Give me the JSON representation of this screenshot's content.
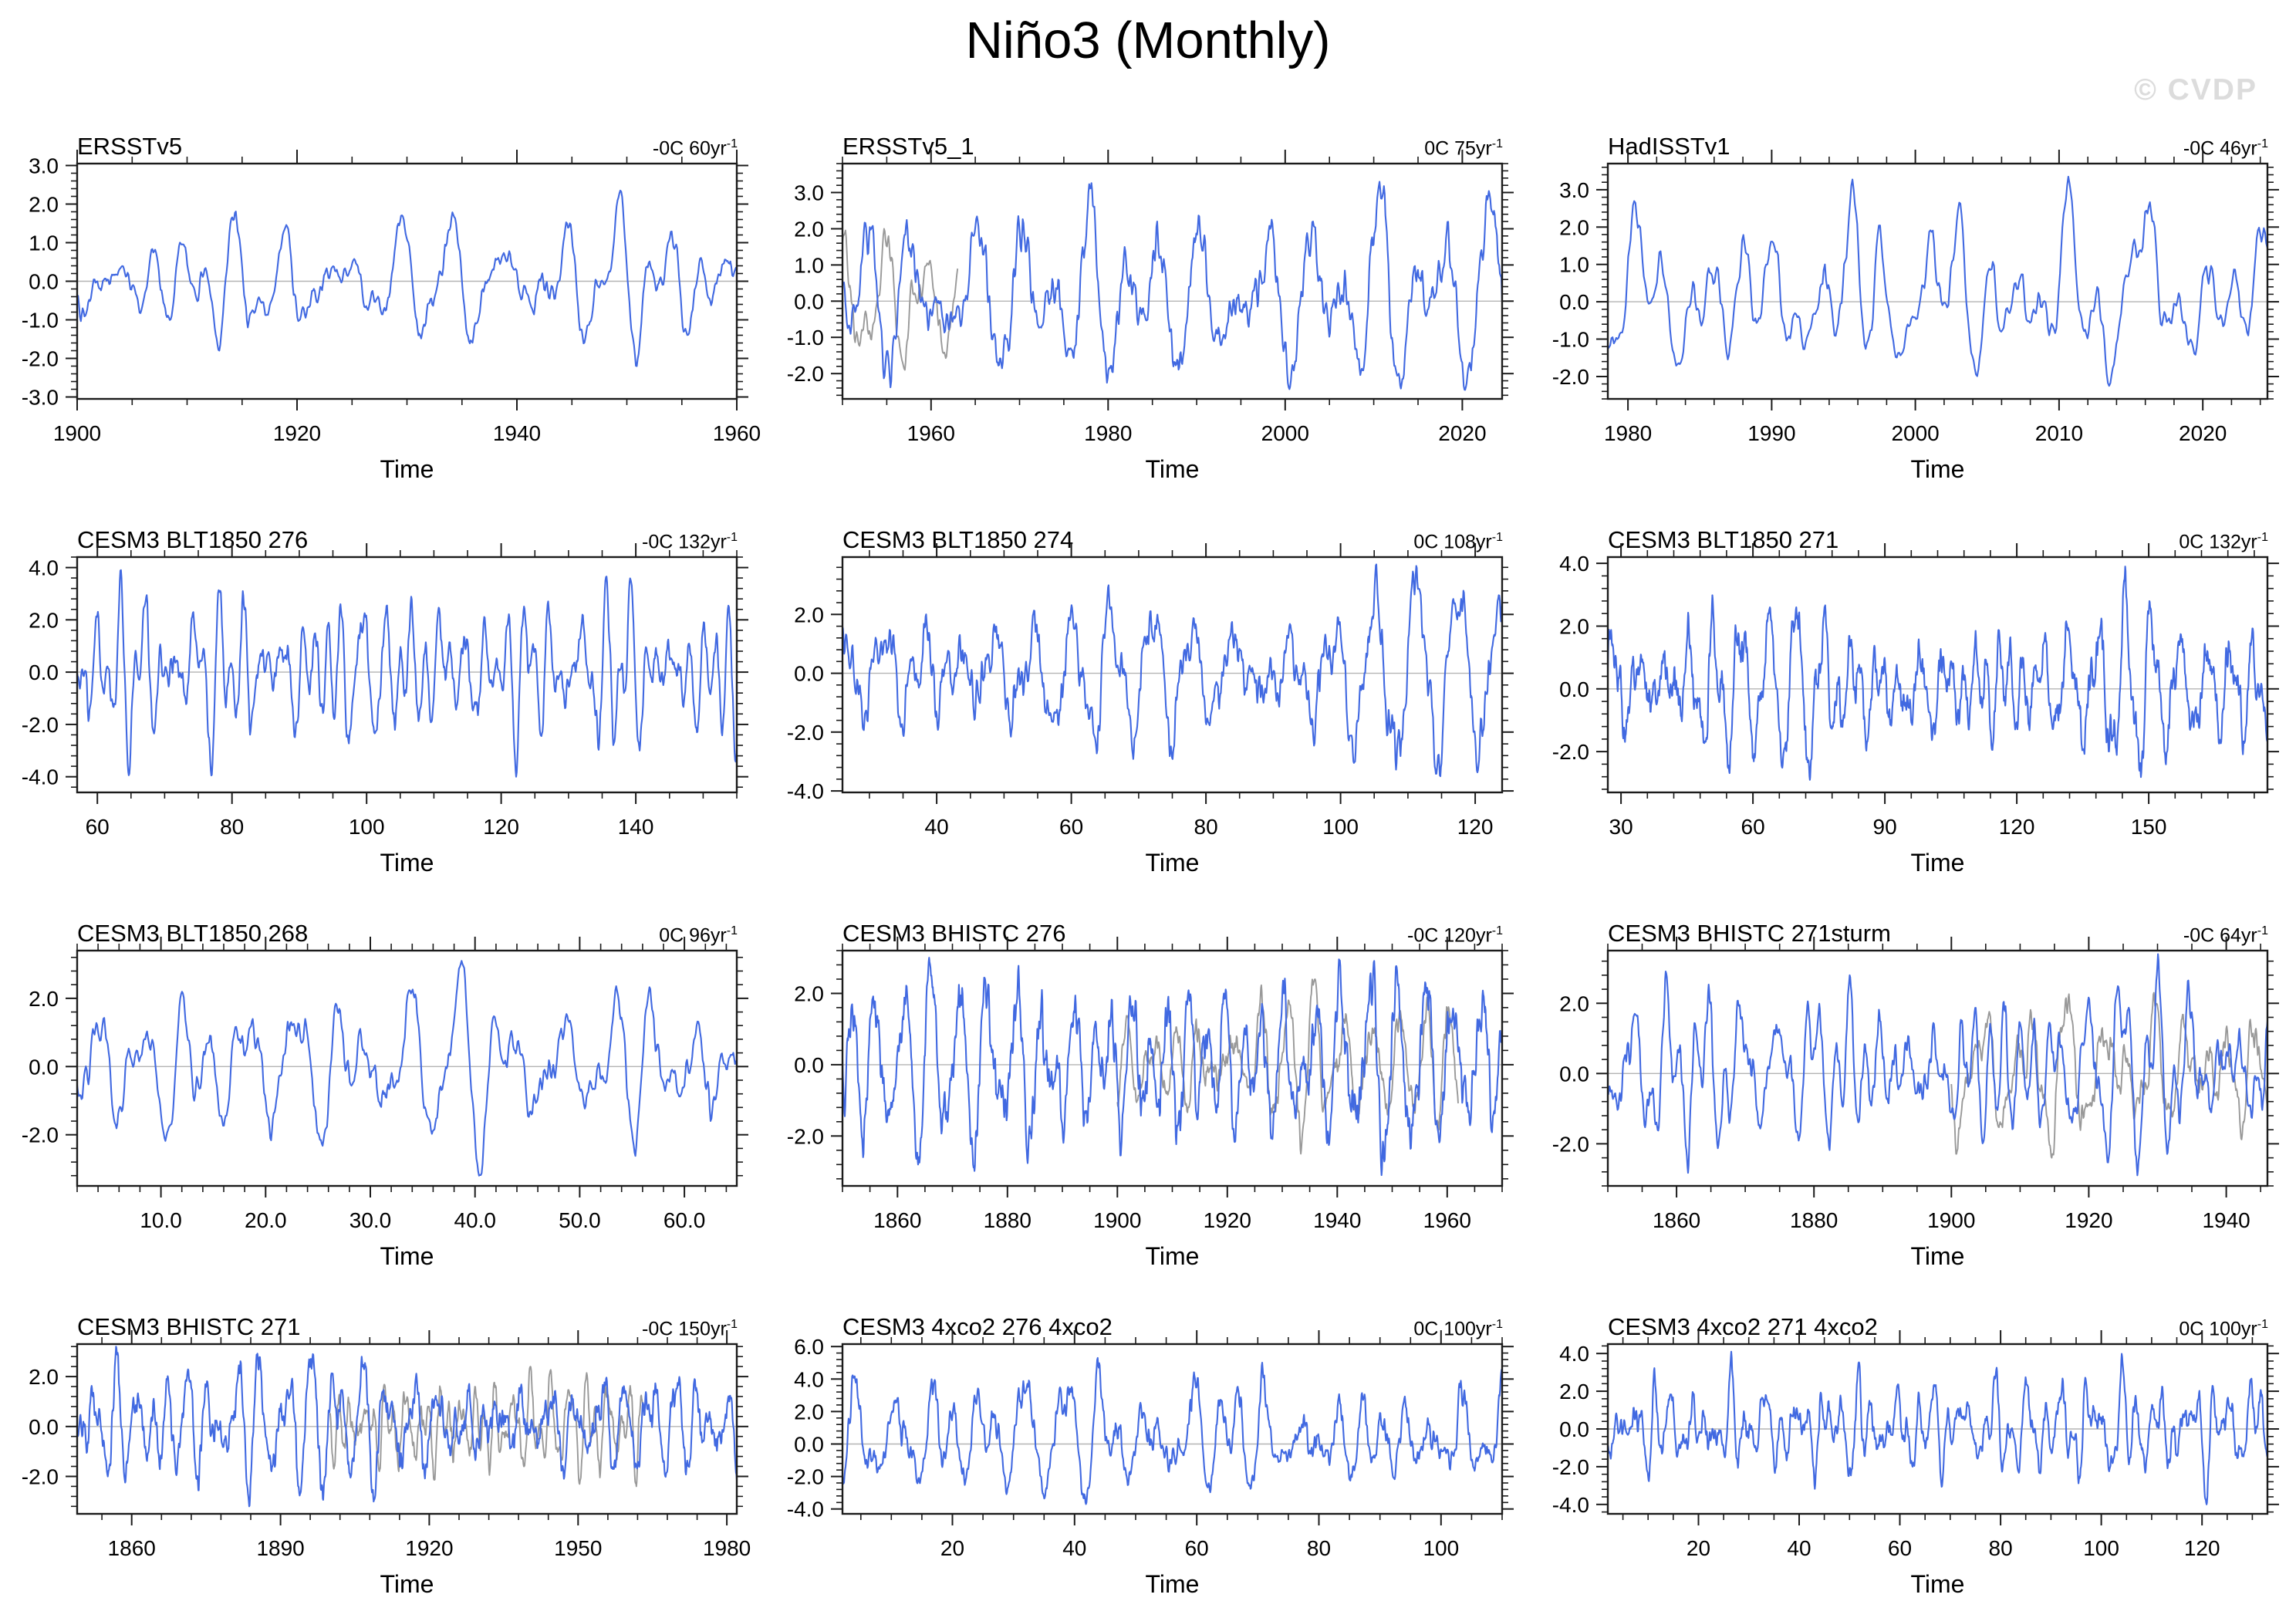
{
  "page": {
    "title": "Niño3 (Monthly)",
    "watermark": "© CVDP"
  },
  "colors": {
    "line_blue": "#4169E1",
    "line_gray": "#999999",
    "zero_line": "#b4b4b4",
    "frame": "#1b1b1b",
    "watermark": "#dcdcdc"
  },
  "axis": {
    "x_label": "Time"
  },
  "chart_data": [
    {
      "type": "line",
      "title": "ERSSTv5",
      "trend": "-0C 60yr",
      "trend_sup": "-1",
      "xlabel": "Time",
      "x": {
        "min": 1900,
        "max": 1960,
        "ticks": [
          1900,
          1920,
          1940,
          1960
        ],
        "minor": 5,
        "decimals": 0
      },
      "y": {
        "min": -3.05,
        "max": 3.05,
        "ticks": [
          3.0,
          2.0,
          1.0,
          0.0,
          -1.0,
          -2.0,
          -3.0
        ]
      },
      "series": [
        {
          "name": "nino3-anomaly",
          "color": "blue",
          "seed": 101,
          "x_start": 1900,
          "x_end": 1960,
          "max": 2.35,
          "min": -2.2
        }
      ]
    },
    {
      "type": "line",
      "title": "ERSSTv5_1",
      "trend": "0C 75yr",
      "trend_sup": "-1",
      "xlabel": "Time",
      "x": {
        "min": 1950,
        "max": 2024.5,
        "ticks": [
          1960,
          1980,
          2000,
          2020
        ],
        "minor": 5,
        "decimals": 0
      },
      "y": {
        "min": -2.7,
        "max": 3.8,
        "ticks": [
          3.0,
          2.0,
          1.0,
          0.0,
          -1.0,
          -2.0
        ]
      },
      "series": [
        {
          "name": "obs-overlay",
          "color": "gray",
          "seed": 202,
          "x_start": 1950,
          "x_end": 1963,
          "max": 2.0,
          "min": -1.9
        },
        {
          "name": "nino3-anomaly",
          "color": "blue",
          "seed": 201,
          "x_start": 1950,
          "x_end": 2024.5,
          "max": 3.3,
          "min": -2.45
        }
      ]
    },
    {
      "type": "line",
      "title": "HadISSTv1",
      "trend": "-0C 46yr",
      "trend_sup": "-1",
      "xlabel": "Time",
      "x": {
        "min": 1978.6,
        "max": 2024.5,
        "ticks": [
          1980,
          1990,
          2000,
          2010,
          2020
        ],
        "minor": 2,
        "decimals": 0
      },
      "y": {
        "min": -2.6,
        "max": 3.7,
        "ticks": [
          3.0,
          2.0,
          1.0,
          0.0,
          -1.0,
          -2.0
        ]
      },
      "series": [
        {
          "name": "nino3-anomaly",
          "color": "blue",
          "seed": 301,
          "x_start": 1978.6,
          "x_end": 2024.5,
          "max": 3.35,
          "min": -2.25
        }
      ]
    },
    {
      "type": "line",
      "title": "CESM3 BLT1850 276",
      "trend": "-0C 132yr",
      "trend_sup": "-1",
      "xlabel": "Time",
      "x": {
        "min": 57,
        "max": 155,
        "ticks": [
          60,
          80,
          100,
          120,
          140
        ],
        "minor": 5,
        "decimals": 0
      },
      "y": {
        "min": -4.6,
        "max": 4.4,
        "ticks": [
          4.0,
          2.0,
          0.0,
          -2.0,
          -4.0
        ]
      },
      "series": [
        {
          "name": "nino3-anomaly",
          "color": "blue",
          "seed": 401,
          "x_start": 57,
          "x_end": 155,
          "max": 3.9,
          "min": -4.0
        }
      ]
    },
    {
      "type": "line",
      "title": "CESM3 BLT1850 274",
      "trend": "0C 108yr",
      "trend_sup": "-1",
      "xlabel": "Time",
      "x": {
        "min": 26,
        "max": 124,
        "ticks": [
          40,
          60,
          80,
          100,
          120
        ],
        "minor": 5,
        "decimals": 0
      },
      "y": {
        "min": -4.05,
        "max": 3.95,
        "ticks": [
          2.0,
          0.0,
          -2.0,
          -4.0
        ]
      },
      "series": [
        {
          "name": "nino3-anomaly",
          "color": "blue",
          "seed": 501,
          "x_start": 26,
          "x_end": 124,
          "max": 3.7,
          "min": -3.5
        }
      ]
    },
    {
      "type": "line",
      "title": "CESM3 BLT1850 271",
      "trend": "0C 132yr",
      "trend_sup": "-1",
      "xlabel": "Time",
      "x": {
        "min": 27,
        "max": 177,
        "ticks": [
          30,
          60,
          90,
          120,
          150
        ],
        "minor": 6,
        "decimals": 0
      },
      "y": {
        "min": -3.3,
        "max": 4.2,
        "ticks": [
          4.0,
          2.0,
          0.0,
          -2.0
        ]
      },
      "series": [
        {
          "name": "nino3-anomaly",
          "color": "blue",
          "seed": 601,
          "x_start": 27,
          "x_end": 177,
          "max": 3.9,
          "min": -2.9
        }
      ]
    },
    {
      "type": "line",
      "title": "CESM3 BLT1850 268",
      "trend": "0C 96yr",
      "trend_sup": "-1",
      "xlabel": "Time",
      "x": {
        "min": 2,
        "max": 65,
        "ticks": [
          10,
          20,
          30,
          40,
          50,
          60
        ],
        "minor": 2,
        "decimals": 1
      },
      "y": {
        "min": -3.5,
        "max": 3.4,
        "ticks": [
          2.0,
          0.0,
          -2.0
        ]
      },
      "series": [
        {
          "name": "nino3-anomaly",
          "color": "blue",
          "seed": 701,
          "x_start": 2,
          "x_end": 65,
          "max": 3.1,
          "min": -3.2
        }
      ]
    },
    {
      "type": "line",
      "title": "CESM3 BHISTC 276",
      "trend": "-0C 120yr",
      "trend_sup": "-1",
      "xlabel": "Time",
      "x": {
        "min": 1850,
        "max": 1970,
        "ticks": [
          1860,
          1880,
          1900,
          1920,
          1940,
          1960
        ],
        "minor": 5,
        "decimals": 0
      },
      "y": {
        "min": -3.4,
        "max": 3.2,
        "ticks": [
          2.0,
          0.0,
          -2.0
        ]
      },
      "series": [
        {
          "name": "obs-overlay",
          "color": "gray",
          "seed": 802,
          "x_start": 1900,
          "x_end": 1962,
          "max": 2.4,
          "min": -2.5
        },
        {
          "name": "nino3-anomaly",
          "color": "blue",
          "seed": 801,
          "x_start": 1850,
          "x_end": 1970,
          "max": 3.0,
          "min": -3.1
        }
      ]
    },
    {
      "type": "line",
      "title": "CESM3 BHISTC 271sturm",
      "trend": "-0C 64yr",
      "trend_sup": "-1",
      "xlabel": "Time",
      "x": {
        "min": 1850,
        "max": 1946,
        "ticks": [
          1860,
          1880,
          1900,
          1920,
          1940
        ],
        "minor": 5,
        "decimals": 0
      },
      "y": {
        "min": -3.2,
        "max": 3.5,
        "ticks": [
          2.0,
          0.0,
          -2.0
        ]
      },
      "series": [
        {
          "name": "obs-overlay",
          "color": "gray",
          "seed": 902,
          "x_start": 1900,
          "x_end": 1946,
          "max": 2.3,
          "min": -2.4
        },
        {
          "name": "nino3-anomaly",
          "color": "blue",
          "seed": 901,
          "x_start": 1850,
          "x_end": 1946,
          "max": 3.4,
          "min": -2.9
        }
      ]
    },
    {
      "type": "line",
      "title": "CESM3 BHISTC 271",
      "trend": "-0C 150yr",
      "trend_sup": "-1",
      "xlabel": "Time",
      "x": {
        "min": 1849,
        "max": 1982,
        "ticks": [
          1860,
          1890,
          1920,
          1950,
          1980
        ],
        "minor": 6,
        "decimals": 0
      },
      "y": {
        "min": -3.5,
        "max": 3.3,
        "ticks": [
          2.0,
          0.0,
          -2.0
        ]
      },
      "series": [
        {
          "name": "obs-overlay",
          "color": "gray",
          "seed": 1002,
          "x_start": 1900,
          "x_end": 1963,
          "max": 2.4,
          "min": -2.4
        },
        {
          "name": "nino3-anomaly",
          "color": "blue",
          "seed": 1001,
          "x_start": 1849,
          "x_end": 1982,
          "max": 3.2,
          "min": -3.2
        }
      ]
    },
    {
      "type": "line",
      "title": "CESM3 4xco2 276 4xco2",
      "trend": "0C 100yr",
      "trend_sup": "-1",
      "xlabel": "Time",
      "x": {
        "min": 2,
        "max": 110,
        "ticks": [
          20,
          40,
          60,
          80,
          100
        ],
        "minor": 5,
        "decimals": 0
      },
      "y": {
        "min": -4.3,
        "max": 6.15,
        "ticks": [
          6.0,
          4.0,
          2.0,
          0.0,
          -2.0,
          -4.0
        ]
      },
      "series": [
        {
          "name": "nino3-anomaly",
          "color": "blue",
          "seed": 1101,
          "x_start": 2,
          "x_end": 110,
          "max": 5.3,
          "min": -3.7
        }
      ]
    },
    {
      "type": "line",
      "title": "CESM3 4xco2 271 4xco2",
      "trend": "0C 100yr",
      "trend_sup": "-1",
      "xlabel": "Time",
      "x": {
        "min": 2,
        "max": 133,
        "ticks": [
          20,
          40,
          60,
          80,
          100,
          120
        ],
        "minor": 5,
        "decimals": 0
      },
      "y": {
        "min": -4.5,
        "max": 4.5,
        "ticks": [
          4.0,
          2.0,
          0.0,
          -2.0,
          -4.0
        ]
      },
      "series": [
        {
          "name": "nino3-anomaly",
          "color": "blue",
          "seed": 1201,
          "x_start": 2,
          "x_end": 133,
          "max": 4.1,
          "min": -4.0
        }
      ]
    }
  ]
}
